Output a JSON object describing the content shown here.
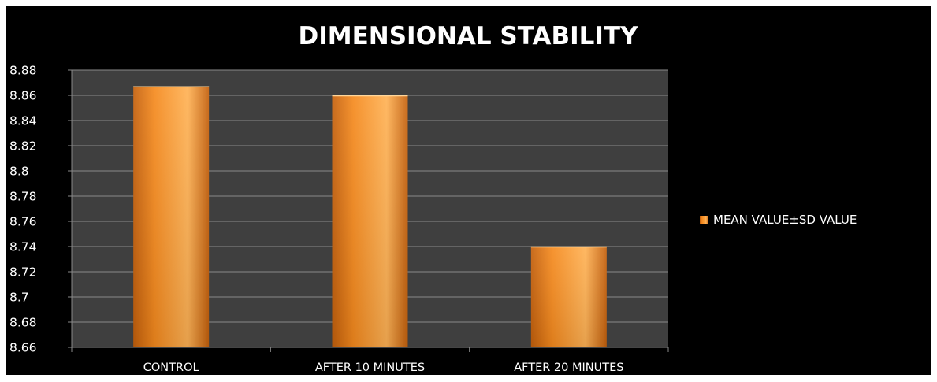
{
  "chart_data": {
    "type": "bar",
    "title": "DIMENSIONAL STABILITY",
    "categories": [
      "CONTROL",
      "AFTER 10 MINUTES",
      "AFTER 20 MINUTES"
    ],
    "series": [
      {
        "name": "MEAN VALUE±SD VALUE",
        "values": [
          8.867,
          8.86,
          8.74
        ]
      }
    ],
    "ylim": [
      8.66,
      8.88
    ],
    "yticks": [
      "8.88",
      "8.86",
      "8.84",
      "8.82",
      "8.8",
      "8.78",
      "8.76",
      "8.74",
      "8.72",
      "8.7",
      "8.68",
      "8.66"
    ],
    "grid": true,
    "legend_position": "right",
    "colors": {
      "background": "#000000",
      "plot_area": "#3f3f3f",
      "bar_light": "#ffb255",
      "bar_mid": "#f58a1e",
      "bar_dark": "#c4600c",
      "gridline": "#8a8a8a"
    }
  }
}
